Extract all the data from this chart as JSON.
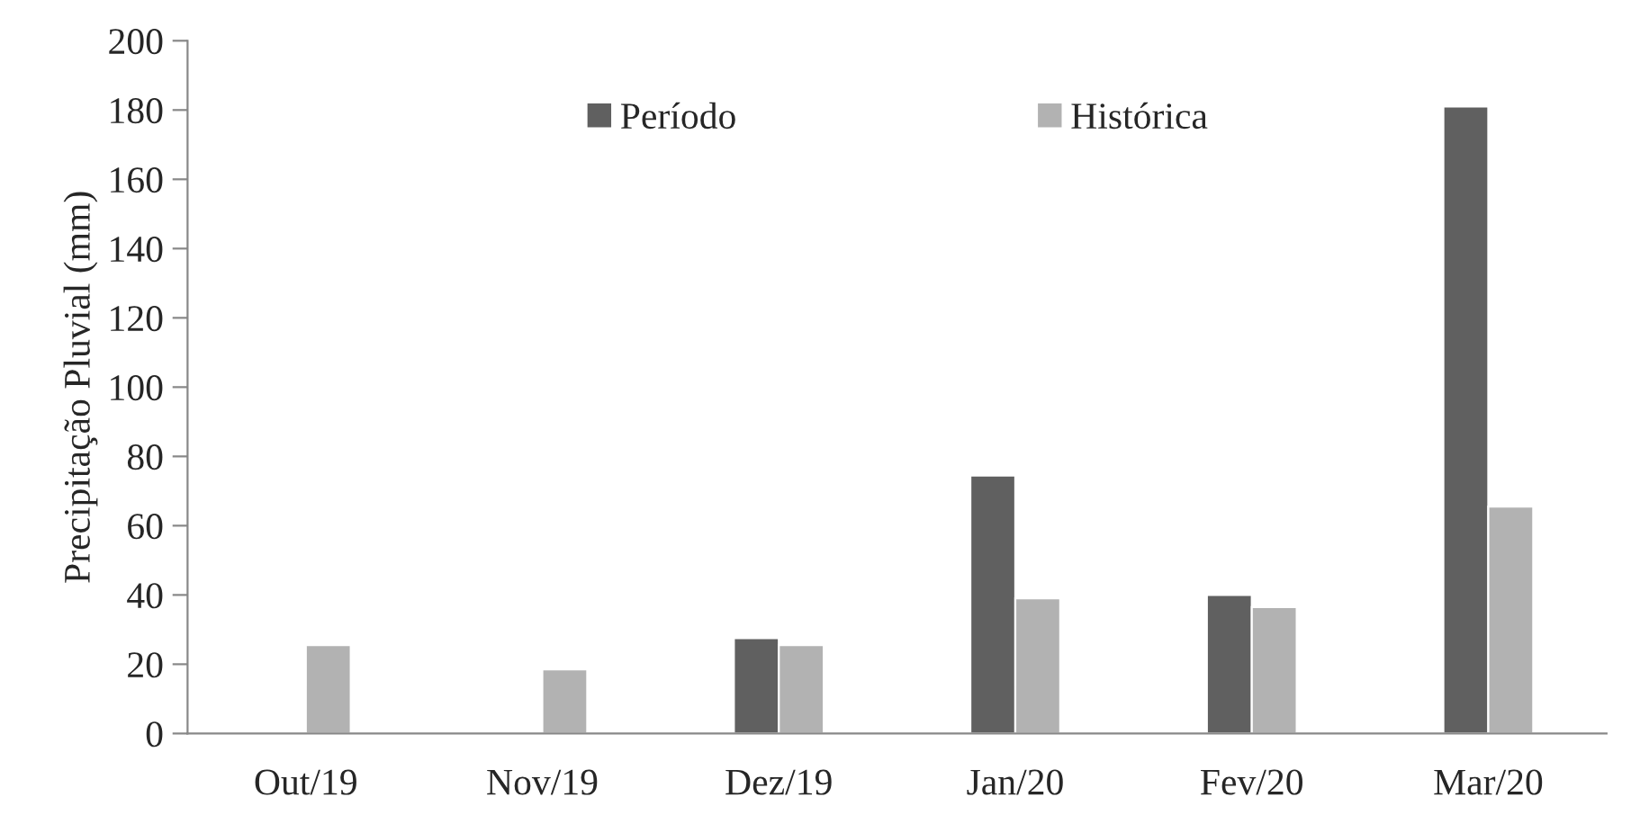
{
  "chart_data": {
    "type": "bar",
    "ylabel": "Precipitação Pluvial (mm)",
    "categories": [
      "Out/19",
      "Nov/19",
      "Dez/19",
      "Jan/20",
      "Fev/20",
      "Mar/20"
    ],
    "series": [
      {
        "name": "Período",
        "color": "#606060",
        "values": [
          null,
          null,
          27.5,
          74.5,
          40,
          181
        ]
      },
      {
        "name": "Histórica",
        "color": "#b2b2b2",
        "values": [
          25.5,
          18.5,
          25.5,
          39,
          36.5,
          65.5
        ]
      }
    ],
    "ylim": [
      0,
      200
    ],
    "yticks": [
      0,
      20,
      40,
      60,
      80,
      100,
      120,
      140,
      160,
      180,
      200
    ],
    "grid": false,
    "legend": "top"
  }
}
